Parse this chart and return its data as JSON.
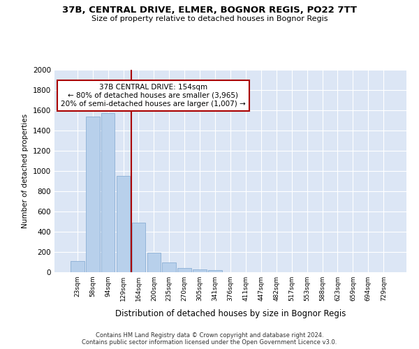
{
  "title": "37B, CENTRAL DRIVE, ELMER, BOGNOR REGIS, PO22 7TT",
  "subtitle": "Size of property relative to detached houses in Bognor Regis",
  "xlabel": "Distribution of detached houses by size in Bognor Regis",
  "ylabel": "Number of detached properties",
  "categories": [
    "23sqm",
    "58sqm",
    "94sqm",
    "129sqm",
    "164sqm",
    "200sqm",
    "235sqm",
    "270sqm",
    "305sqm",
    "341sqm",
    "376sqm",
    "411sqm",
    "447sqm",
    "482sqm",
    "517sqm",
    "553sqm",
    "588sqm",
    "623sqm",
    "659sqm",
    "694sqm",
    "729sqm"
  ],
  "values": [
    110,
    1540,
    1570,
    950,
    490,
    190,
    95,
    38,
    25,
    20,
    0,
    0,
    0,
    0,
    0,
    0,
    0,
    0,
    0,
    0,
    0
  ],
  "bar_color": "#b8d0eb",
  "bar_edge_color": "#8aaed4",
  "vline_color": "#aa0000",
  "annotation_text": "37B CENTRAL DRIVE: 154sqm\n← 80% of detached houses are smaller (3,965)\n20% of semi-detached houses are larger (1,007) →",
  "annotation_box_color": "#ffffff",
  "annotation_box_edge": "#aa0000",
  "footer_text": "Contains HM Land Registry data © Crown copyright and database right 2024.\nContains public sector information licensed under the Open Government Licence v3.0.",
  "plot_bg_color": "#dce6f5",
  "ylim": [
    0,
    2000
  ],
  "yticks": [
    0,
    200,
    400,
    600,
    800,
    1000,
    1200,
    1400,
    1600,
    1800,
    2000
  ]
}
